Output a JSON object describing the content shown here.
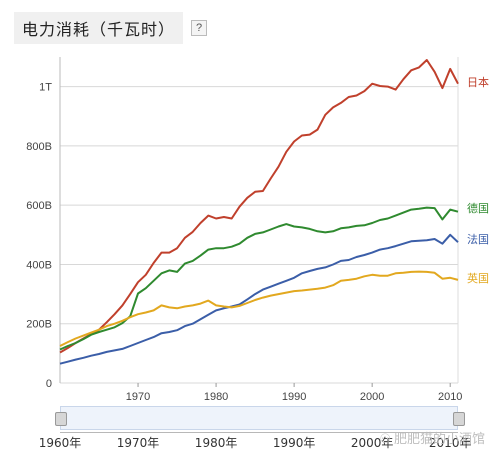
{
  "header": {
    "title": "电力消耗（千瓦时）",
    "help_label": "?"
  },
  "colors": {
    "日本": "#c0402c",
    "德国": "#2f8a2f",
    "法国": "#3b5ea8",
    "英国": "#e2a81f",
    "grid": "#d8d8d8",
    "axis": "#666666"
  },
  "slider": {
    "labels": [
      "1960年",
      "1970年",
      "1980年",
      "1990年",
      "2000年",
      "2010年"
    ],
    "range": [
      1960,
      2011
    ]
  },
  "watermark": {
    "text": "肥肥猫的小酒馆",
    "icon": "wechat-icon"
  },
  "chart_data": {
    "type": "line",
    "title": "电力消耗（千瓦时）",
    "xlabel": "",
    "ylabel": "",
    "xlim": [
      1960,
      2011
    ],
    "ylim": [
      0,
      1100
    ],
    "x_ticks": [
      1970,
      1980,
      1990,
      2000,
      2010
    ],
    "y_ticks": [
      {
        "value": 0,
        "label": "0"
      },
      {
        "value": 200,
        "label": "200B"
      },
      {
        "value": 400,
        "label": "400B"
      },
      {
        "value": 600,
        "label": "600B"
      },
      {
        "value": 800,
        "label": "800B"
      },
      {
        "value": 1000,
        "label": "1T"
      }
    ],
    "grid": true,
    "legend": "right-end labels",
    "series": [
      {
        "name": "日本",
        "x": [
          1960,
          1961,
          1962,
          1963,
          1964,
          1965,
          1966,
          1967,
          1968,
          1969,
          1970,
          1971,
          1972,
          1973,
          1974,
          1975,
          1976,
          1977,
          1978,
          1979,
          1980,
          1981,
          1982,
          1983,
          1984,
          1985,
          1986,
          1987,
          1988,
          1989,
          1990,
          1991,
          1992,
          1993,
          1994,
          1995,
          1996,
          1997,
          1998,
          1999,
          2000,
          2001,
          2002,
          2003,
          2004,
          2005,
          2006,
          2007,
          2008,
          2009,
          2010,
          2011
        ],
        "y": [
          103,
          118,
          135,
          150,
          165,
          180,
          205,
          232,
          262,
          300,
          340,
          365,
          405,
          440,
          440,
          455,
          490,
          510,
          540,
          565,
          555,
          560,
          555,
          595,
          625,
          645,
          648,
          690,
          730,
          780,
          815,
          835,
          838,
          855,
          905,
          930,
          945,
          965,
          970,
          985,
          1010,
          1002,
          1000,
          990,
          1025,
          1055,
          1065,
          1090,
          1050,
          995,
          1060,
          1010
        ]
      },
      {
        "name": "德国",
        "x": [
          1960,
          1961,
          1962,
          1963,
          1964,
          1965,
          1966,
          1967,
          1968,
          1969,
          1970,
          1971,
          1972,
          1973,
          1974,
          1975,
          1976,
          1977,
          1978,
          1979,
          1980,
          1981,
          1982,
          1983,
          1984,
          1985,
          1986,
          1987,
          1988,
          1989,
          1990,
          1991,
          1992,
          1993,
          1994,
          1995,
          1996,
          1997,
          1998,
          1999,
          2000,
          2001,
          2002,
          2003,
          2004,
          2005,
          2006,
          2007,
          2008,
          2009,
          2010,
          2011
        ],
        "y": [
          113,
          125,
          135,
          148,
          163,
          172,
          180,
          188,
          202,
          225,
          302,
          320,
          345,
          370,
          380,
          375,
          403,
          412,
          430,
          450,
          455,
          455,
          460,
          470,
          490,
          503,
          508,
          518,
          528,
          536,
          528,
          525,
          520,
          512,
          508,
          512,
          522,
          525,
          530,
          532,
          540,
          550,
          555,
          565,
          575,
          585,
          588,
          592,
          590,
          552,
          585,
          578
        ]
      },
      {
        "name": "法国",
        "x": [
          1960,
          1961,
          1962,
          1963,
          1964,
          1965,
          1966,
          1967,
          1968,
          1969,
          1970,
          1971,
          1972,
          1973,
          1974,
          1975,
          1976,
          1977,
          1978,
          1979,
          1980,
          1981,
          1982,
          1983,
          1984,
          1985,
          1986,
          1987,
          1988,
          1989,
          1990,
          1991,
          1992,
          1993,
          1994,
          1995,
          1996,
          1997,
          1998,
          1999,
          2000,
          2001,
          2002,
          2003,
          2004,
          2005,
          2006,
          2007,
          2008,
          2009,
          2010,
          2011
        ],
        "y": [
          65,
          72,
          79,
          85,
          92,
          98,
          105,
          110,
          115,
          125,
          135,
          145,
          155,
          168,
          172,
          178,
          192,
          200,
          215,
          230,
          245,
          252,
          258,
          265,
          282,
          300,
          315,
          325,
          335,
          345,
          355,
          370,
          378,
          385,
          390,
          400,
          412,
          415,
          425,
          432,
          440,
          450,
          455,
          462,
          470,
          478,
          480,
          482,
          486,
          470,
          500,
          475
        ]
      },
      {
        "name": "英国",
        "x": [
          1960,
          1961,
          1962,
          1963,
          1964,
          1965,
          1966,
          1967,
          1968,
          1969,
          1970,
          1971,
          1972,
          1973,
          1974,
          1975,
          1976,
          1977,
          1978,
          1979,
          1980,
          1981,
          1982,
          1983,
          1984,
          1985,
          1986,
          1987,
          1988,
          1989,
          1990,
          1991,
          1992,
          1993,
          1994,
          1995,
          1996,
          1997,
          1998,
          1999,
          2000,
          2001,
          2002,
          2003,
          2004,
          2005,
          2006,
          2007,
          2008,
          2009,
          2010,
          2011
        ],
        "y": [
          125,
          138,
          150,
          160,
          170,
          180,
          192,
          200,
          210,
          222,
          232,
          238,
          245,
          262,
          255,
          252,
          258,
          262,
          268,
          278,
          262,
          258,
          255,
          260,
          270,
          280,
          288,
          295,
          300,
          305,
          310,
          312,
          315,
          318,
          322,
          330,
          345,
          348,
          352,
          360,
          365,
          362,
          362,
          370,
          372,
          375,
          376,
          375,
          372,
          352,
          355,
          348
        ]
      }
    ]
  }
}
